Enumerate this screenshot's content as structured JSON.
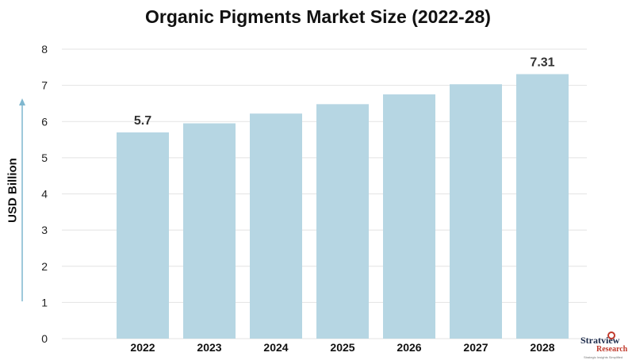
{
  "chart_data": {
    "type": "bar",
    "title": "Organic Pigments Market Size (2022-28)",
    "ylabel": "USD Billion",
    "xlabel": "",
    "categories": [
      "2022",
      "2023",
      "2024",
      "2025",
      "2026",
      "2027",
      "2028"
    ],
    "values": [
      5.7,
      5.95,
      6.22,
      6.48,
      6.75,
      7.03,
      7.31
    ],
    "data_labels": [
      "5.7",
      "",
      "",
      "",
      "",
      "",
      "7.31"
    ],
    "ylim": [
      0,
      8
    ],
    "yticks": [
      0,
      1,
      2,
      3,
      4,
      5,
      6,
      7,
      8
    ],
    "grid": true,
    "legend": "none",
    "colors": {
      "bar": "#b6d6e3",
      "grid": "#e3e3e3",
      "arrow": "#7fb7cf"
    }
  },
  "logo": {
    "name": "Stratview",
    "sub": "Research",
    "tagline": "Strategic Insights Simplified"
  }
}
